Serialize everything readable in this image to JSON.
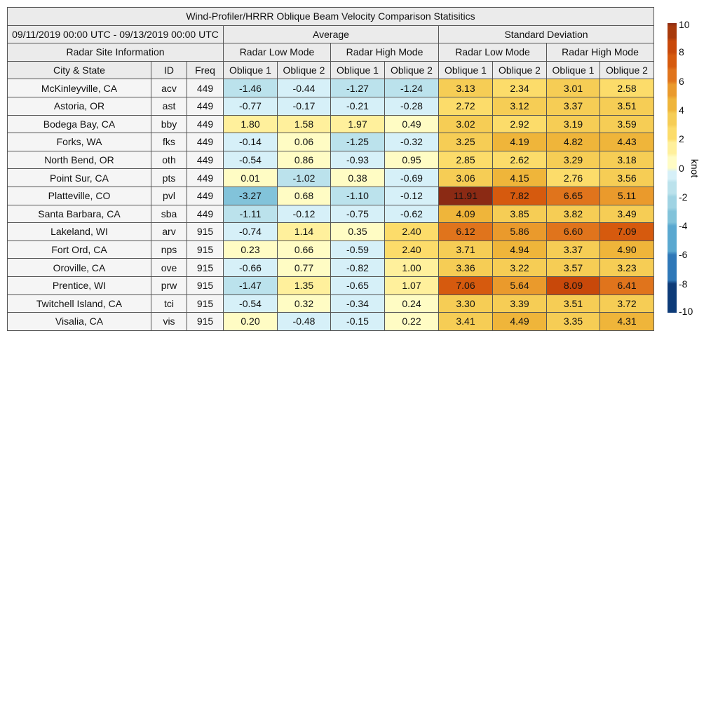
{
  "chart_data": {
    "type": "table",
    "title": "Wind-Profiler/HRRR Oblique Beam Velocity Comparison Statisitics",
    "date_range": "09/11/2019 00:00 UTC - 09/13/2019 00:00 UTC",
    "groups": {
      "average": "Average",
      "std": "Standard Deviation",
      "site_info": "Radar Site Information"
    },
    "modes": [
      "Radar Low Mode",
      "Radar High Mode",
      "Radar Low Mode",
      "Radar High Mode"
    ],
    "columns": [
      "City & State",
      "ID",
      "Freq",
      "Oblique 1",
      "Oblique 2",
      "Oblique 1",
      "Oblique 2",
      "Oblique 1",
      "Oblique 2",
      "Oblique 1",
      "Oblique 2"
    ],
    "rows": [
      {
        "city": "McKinleyville, CA",
        "id": "acv",
        "freq": "449",
        "avg": [
          "-1.46",
          "-0.44",
          "-1.27",
          "-1.24"
        ],
        "std": [
          "3.13",
          "2.34",
          "3.01",
          "2.58"
        ]
      },
      {
        "city": "Astoria, OR",
        "id": "ast",
        "freq": "449",
        "avg": [
          "-0.77",
          "-0.17",
          "-0.21",
          "-0.28"
        ],
        "std": [
          "2.72",
          "3.12",
          "3.37",
          "3.51"
        ]
      },
      {
        "city": "Bodega Bay, CA",
        "id": "bby",
        "freq": "449",
        "avg": [
          "1.80",
          "1.58",
          "1.97",
          "0.49"
        ],
        "std": [
          "3.02",
          "2.92",
          "3.19",
          "3.59"
        ]
      },
      {
        "city": "Forks, WA",
        "id": "fks",
        "freq": "449",
        "avg": [
          "-0.14",
          "0.06",
          "-1.25",
          "-0.32"
        ],
        "std": [
          "3.25",
          "4.19",
          "4.82",
          "4.43"
        ]
      },
      {
        "city": "North Bend, OR",
        "id": "oth",
        "freq": "449",
        "avg": [
          "-0.54",
          "0.86",
          "-0.93",
          "0.95"
        ],
        "std": [
          "2.85",
          "2.62",
          "3.29",
          "3.18"
        ]
      },
      {
        "city": "Point Sur, CA",
        "id": "pts",
        "freq": "449",
        "avg": [
          "0.01",
          "-1.02",
          "0.38",
          "-0.69"
        ],
        "std": [
          "3.06",
          "4.15",
          "2.76",
          "3.56"
        ]
      },
      {
        "city": "Platteville, CO",
        "id": "pvl",
        "freq": "449",
        "avg": [
          "-3.27",
          "0.68",
          "-1.10",
          "-0.12"
        ],
        "std": [
          "11.91",
          "7.82",
          "6.65",
          "5.11"
        ]
      },
      {
        "city": "Santa Barbara, CA",
        "id": "sba",
        "freq": "449",
        "avg": [
          "-1.11",
          "-0.12",
          "-0.75",
          "-0.62"
        ],
        "std": [
          "4.09",
          "3.85",
          "3.82",
          "3.49"
        ]
      },
      {
        "city": "Lakeland, WI",
        "id": "arv",
        "freq": "915",
        "avg": [
          "-0.74",
          "1.14",
          "0.35",
          "2.40"
        ],
        "std": [
          "6.12",
          "5.86",
          "6.60",
          "7.09"
        ]
      },
      {
        "city": "Fort Ord, CA",
        "id": "nps",
        "freq": "915",
        "avg": [
          "0.23",
          "0.66",
          "-0.59",
          "2.40"
        ],
        "std": [
          "3.71",
          "4.94",
          "3.37",
          "4.90"
        ]
      },
      {
        "city": "Oroville, CA",
        "id": "ove",
        "freq": "915",
        "avg": [
          "-0.66",
          "0.77",
          "-0.82",
          "1.00"
        ],
        "std": [
          "3.36",
          "3.22",
          "3.57",
          "3.23"
        ]
      },
      {
        "city": "Prentice, WI",
        "id": "prw",
        "freq": "915",
        "avg": [
          "-1.47",
          "1.35",
          "-0.65",
          "1.07"
        ],
        "std": [
          "7.06",
          "5.64",
          "8.09",
          "6.41"
        ]
      },
      {
        "city": "Twitchell Island, CA",
        "id": "tci",
        "freq": "915",
        "avg": [
          "-0.54",
          "0.32",
          "-0.34",
          "0.24"
        ],
        "std": [
          "3.30",
          "3.39",
          "3.51",
          "3.72"
        ]
      },
      {
        "city": "Visalia, CA",
        "id": "vis",
        "freq": "915",
        "avg": [
          "0.20",
          "-0.48",
          "-0.15",
          "0.22"
        ],
        "std": [
          "3.41",
          "4.49",
          "3.35",
          "4.31"
        ]
      }
    ],
    "colorbar": {
      "label": "knot",
      "range": [
        -10,
        10
      ],
      "ticks": [
        "10",
        "8",
        "6",
        "4",
        "2",
        "0",
        "-2",
        "-4",
        "-6",
        "-8",
        "-10"
      ]
    }
  }
}
